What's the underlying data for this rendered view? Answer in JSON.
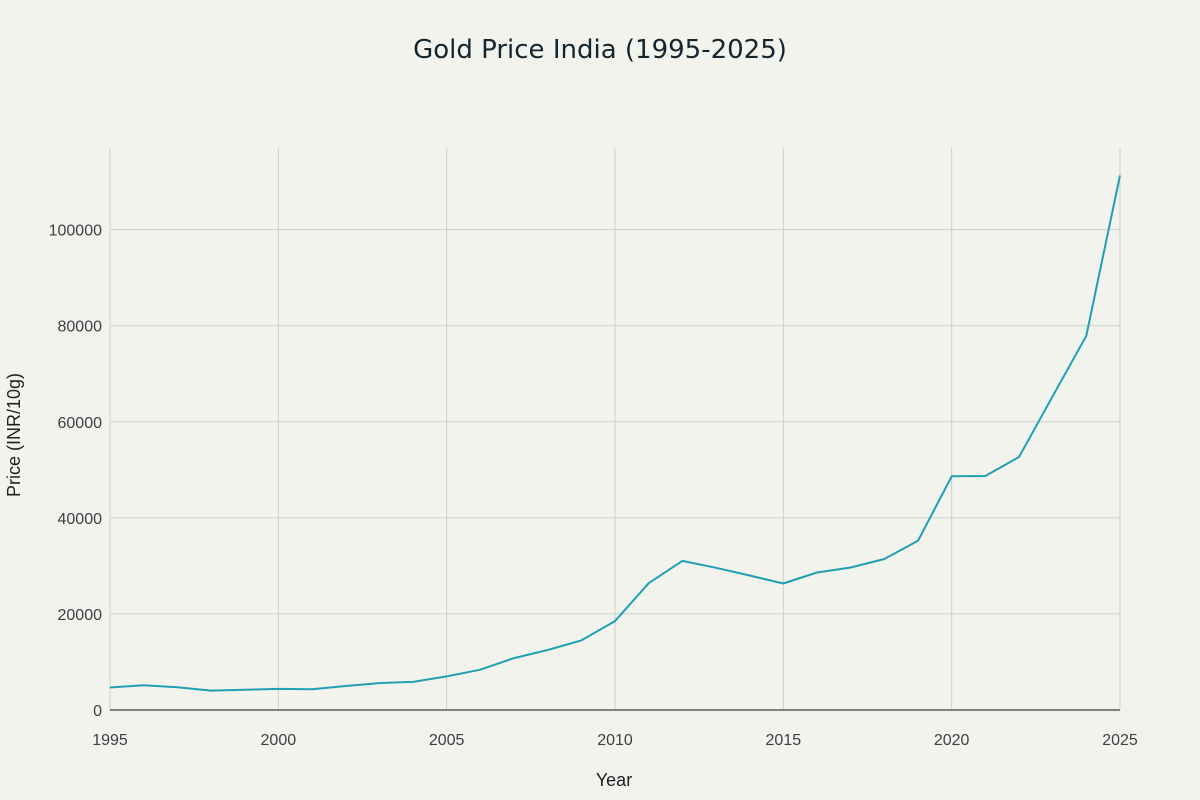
{
  "chart_data": {
    "type": "line",
    "title": "Gold Price India (1995-2025)",
    "xlabel": "Year",
    "ylabel": "Price (INR/10g)",
    "xlim": [
      1995,
      2025
    ],
    "ylim": [
      0,
      117000
    ],
    "x_ticks": [
      1995,
      2000,
      2005,
      2010,
      2015,
      2020,
      2025
    ],
    "y_ticks": [
      0,
      20000,
      40000,
      60000,
      80000,
      100000
    ],
    "grid": true,
    "line_color": "#1f9fb4",
    "series": [
      {
        "name": "Gold Price",
        "x": [
          1995,
          1996,
          1997,
          1998,
          1999,
          2000,
          2001,
          2002,
          2003,
          2004,
          2005,
          2006,
          2007,
          2008,
          2009,
          2010,
          2011,
          2012,
          2013,
          2014,
          2015,
          2016,
          2017,
          2018,
          2019,
          2020,
          2021,
          2022,
          2023,
          2024,
          2025
        ],
        "values": [
          4680,
          5160,
          4725,
          4045,
          4234,
          4400,
          4300,
          4990,
          5600,
          5850,
          7000,
          8400,
          10800,
          12500,
          14500,
          18500,
          26400,
          31050,
          29600,
          28006,
          26343,
          28623,
          29667,
          31438,
          35220,
          48651,
          48720,
          52670,
          65330,
          77900,
          111300
        ]
      }
    ]
  }
}
